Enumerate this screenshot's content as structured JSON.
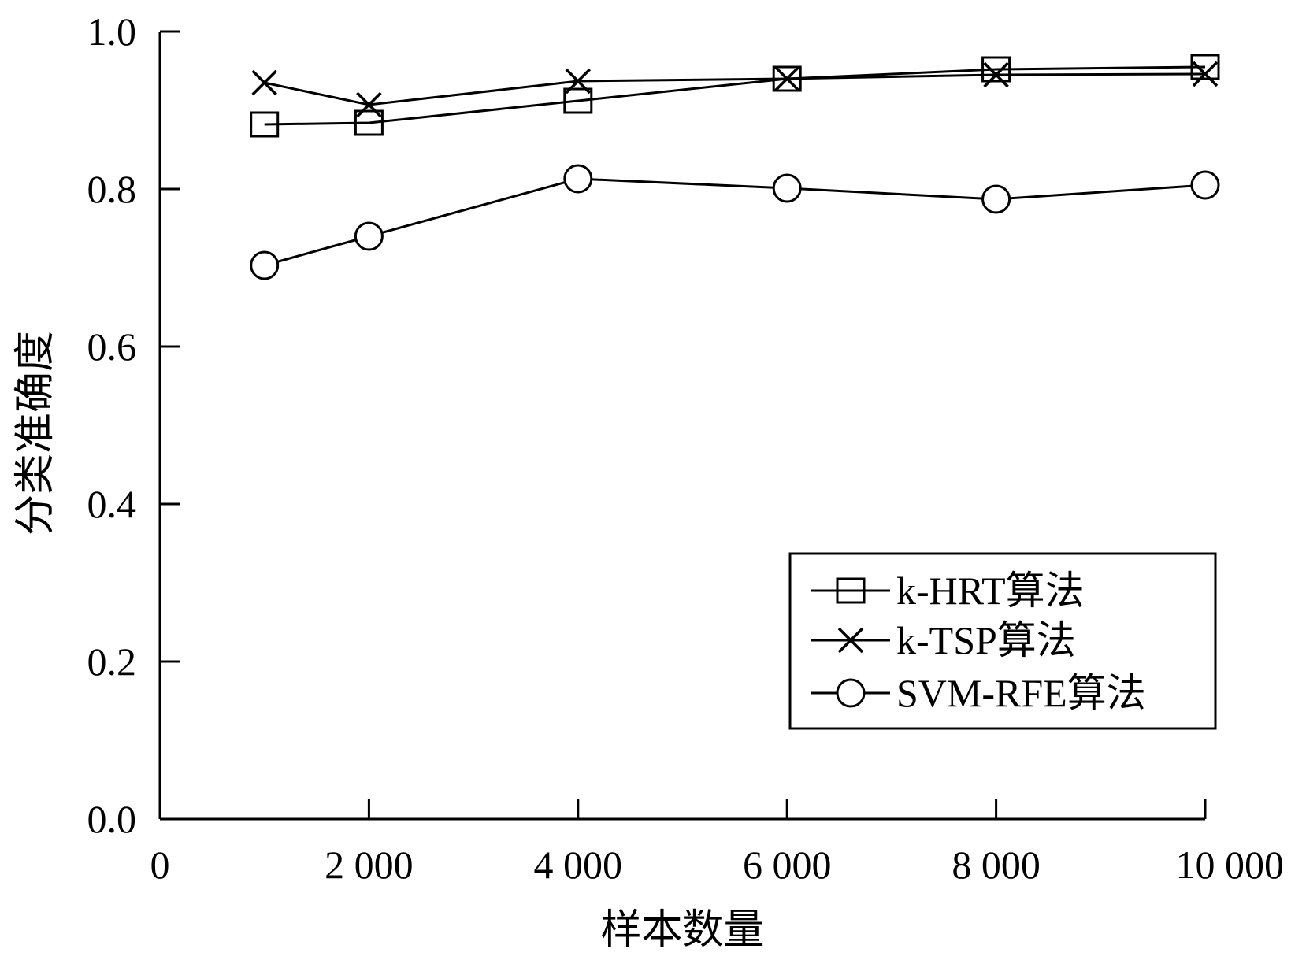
{
  "chart_data": {
    "type": "line",
    "xlabel": "样本数量",
    "ylabel": "分类准确度",
    "xlim": [
      0,
      10000
    ],
    "ylim": [
      0,
      1.0
    ],
    "x_ticks": [
      0,
      2000,
      4000,
      6000,
      8000,
      10000
    ],
    "x_tick_labels": [
      "0",
      "2 000",
      "4 000",
      "6 000",
      "8 000",
      "10 000"
    ],
    "y_ticks": [
      0,
      0.2,
      0.4,
      0.6,
      0.8,
      1.0
    ],
    "y_tick_labels": [
      "0.0",
      "0.2",
      "0.4",
      "0.6",
      "0.8",
      "1.0"
    ],
    "grid": false,
    "legend_position": "lower-right",
    "series": [
      {
        "name": "k-HRT算法",
        "marker": "square",
        "x": [
          1000,
          2000,
          4000,
          6000,
          8000,
          10000
        ],
        "y": [
          0.882,
          0.884,
          0.912,
          0.94,
          0.952,
          0.955
        ]
      },
      {
        "name": "k-TSP算法",
        "marker": "x",
        "x": [
          1000,
          2000,
          4000,
          6000,
          8000,
          10000
        ],
        "y": [
          0.935,
          0.907,
          0.937,
          0.94,
          0.945,
          0.946
        ]
      },
      {
        "name": "SVM-RFE算法",
        "marker": "circle",
        "x": [
          1000,
          2000,
          4000,
          6000,
          8000,
          10000
        ],
        "y": [
          0.703,
          0.74,
          0.813,
          0.801,
          0.787,
          0.805
        ]
      }
    ]
  }
}
